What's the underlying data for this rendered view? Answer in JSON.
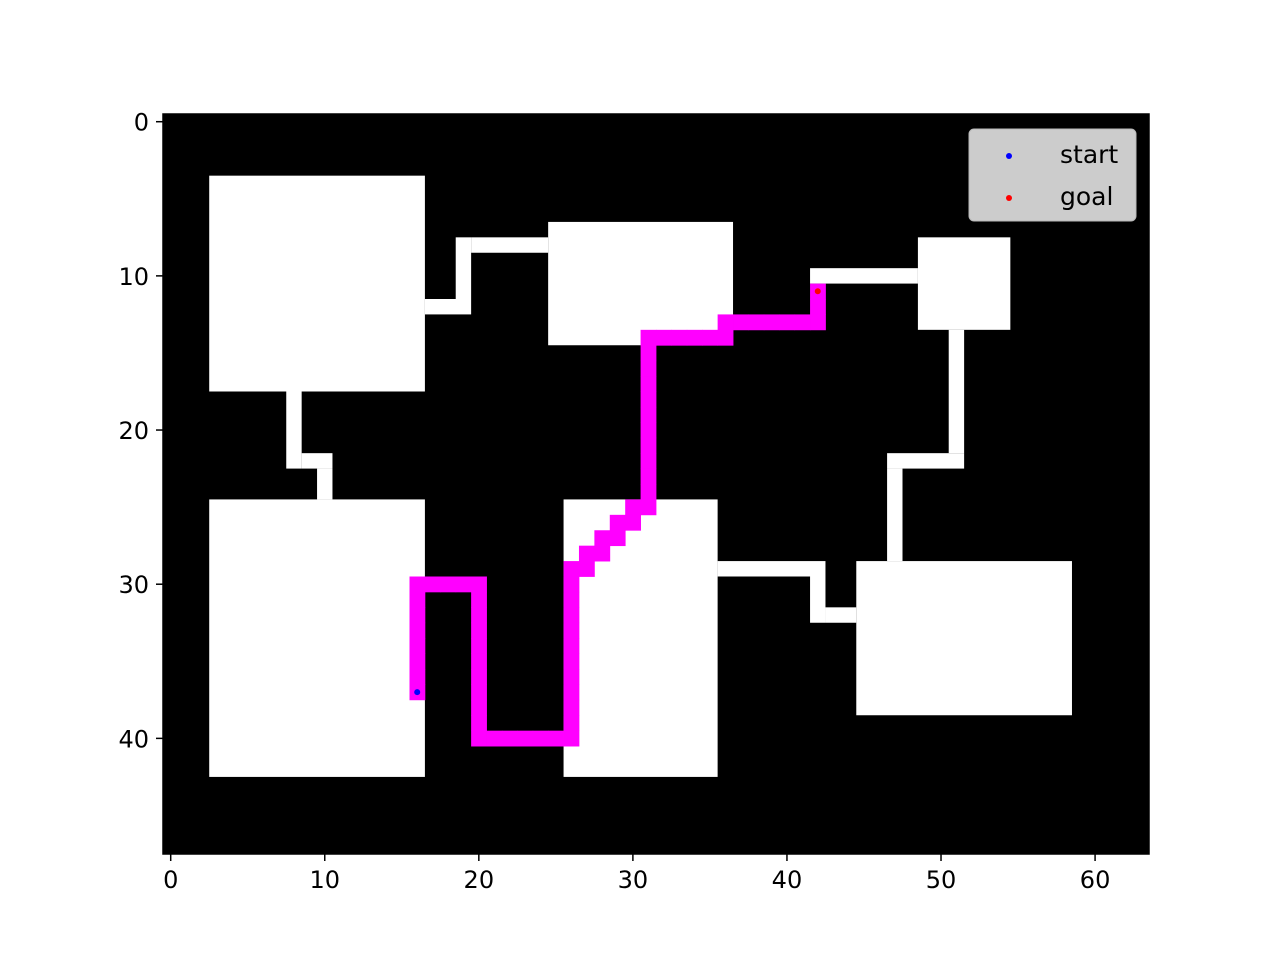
{
  "chart_data": {
    "type": "heatmap",
    "title": "",
    "xlabel": "",
    "ylabel": "",
    "xlim": [
      -0.5,
      63.5
    ],
    "ylim": [
      47.5,
      -0.5
    ],
    "x_ticks": [
      0,
      10,
      20,
      30,
      40,
      50,
      60
    ],
    "y_ticks": [
      0,
      10,
      20,
      30,
      40
    ],
    "grid": false,
    "colors": {
      "background": "#000000",
      "free": "#ffffff",
      "path": "#ff00ff",
      "start": "#0000ff",
      "goal": "#ff0000"
    },
    "free_cells": [
      {
        "c0": 3,
        "c1": 16,
        "r0": 4,
        "r1": 17
      },
      {
        "c0": 3,
        "c1": 16,
        "r0": 25,
        "r1": 42
      },
      {
        "c0": 25,
        "c1": 36,
        "r0": 7,
        "r1": 14
      },
      {
        "c0": 26,
        "c1": 35,
        "r0": 25,
        "r1": 42
      },
      {
        "c0": 49,
        "c1": 54,
        "r0": 8,
        "r1": 13
      },
      {
        "c0": 45,
        "c1": 58,
        "r0": 29,
        "r1": 38
      },
      {
        "c0": 17,
        "c1": 19,
        "r0": 12,
        "r1": 12
      },
      {
        "c0": 19,
        "c1": 19,
        "r0": 8,
        "r1": 11
      },
      {
        "c0": 20,
        "c1": 24,
        "r0": 8,
        "r1": 8
      },
      {
        "c0": 8,
        "c1": 8,
        "r0": 18,
        "r1": 22
      },
      {
        "c0": 9,
        "c1": 10,
        "r0": 22,
        "r1": 22
      },
      {
        "c0": 10,
        "c1": 10,
        "r0": 23,
        "r1": 24
      },
      {
        "c0": 42,
        "c1": 48,
        "r0": 10,
        "r1": 10
      },
      {
        "c0": 51,
        "c1": 51,
        "r0": 14,
        "r1": 21
      },
      {
        "c0": 47,
        "c1": 51,
        "r0": 22,
        "r1": 22
      },
      {
        "c0": 47,
        "c1": 47,
        "r0": 23,
        "r1": 28
      },
      {
        "c0": 36,
        "c1": 42,
        "r0": 29,
        "r1": 29
      },
      {
        "c0": 42,
        "c1": 42,
        "r0": 30,
        "r1": 32
      },
      {
        "c0": 43,
        "c1": 44,
        "r0": 32,
        "r1": 32
      }
    ],
    "path": [
      [
        16,
        37
      ],
      [
        16,
        36
      ],
      [
        16,
        35
      ],
      [
        16,
        34
      ],
      [
        16,
        33
      ],
      [
        16,
        32
      ],
      [
        16,
        31
      ],
      [
        16,
        30
      ],
      [
        17,
        30
      ],
      [
        18,
        30
      ],
      [
        19,
        30
      ],
      [
        20,
        30
      ],
      [
        20,
        31
      ],
      [
        20,
        32
      ],
      [
        20,
        33
      ],
      [
        20,
        34
      ],
      [
        20,
        35
      ],
      [
        20,
        36
      ],
      [
        20,
        37
      ],
      [
        20,
        38
      ],
      [
        20,
        39
      ],
      [
        20,
        40
      ],
      [
        21,
        40
      ],
      [
        22,
        40
      ],
      [
        23,
        40
      ],
      [
        24,
        40
      ],
      [
        25,
        40
      ],
      [
        26,
        40
      ],
      [
        26,
        39
      ],
      [
        26,
        38
      ],
      [
        26,
        37
      ],
      [
        26,
        36
      ],
      [
        26,
        35
      ],
      [
        26,
        34
      ],
      [
        26,
        33
      ],
      [
        26,
        32
      ],
      [
        26,
        31
      ],
      [
        26,
        30
      ],
      [
        26,
        29
      ],
      [
        27,
        29
      ],
      [
        27,
        28
      ],
      [
        28,
        28
      ],
      [
        28,
        27
      ],
      [
        29,
        27
      ],
      [
        29,
        26
      ],
      [
        30,
        26
      ],
      [
        30,
        25
      ],
      [
        31,
        25
      ],
      [
        31,
        24
      ],
      [
        31,
        23
      ],
      [
        31,
        22
      ],
      [
        31,
        21
      ],
      [
        31,
        20
      ],
      [
        31,
        19
      ],
      [
        31,
        18
      ],
      [
        31,
        17
      ],
      [
        31,
        16
      ],
      [
        31,
        15
      ],
      [
        31,
        14
      ],
      [
        32,
        14
      ],
      [
        33,
        14
      ],
      [
        34,
        14
      ],
      [
        35,
        14
      ],
      [
        36,
        14
      ],
      [
        36,
        13
      ],
      [
        37,
        13
      ],
      [
        38,
        13
      ],
      [
        39,
        13
      ],
      [
        40,
        13
      ],
      [
        41,
        13
      ],
      [
        42,
        13
      ],
      [
        42,
        12
      ],
      [
        42,
        11
      ]
    ],
    "start": {
      "x": 16,
      "y": 37
    },
    "goal": {
      "x": 42,
      "y": 11
    },
    "legend": {
      "placement": "top-right",
      "entries": [
        {
          "label": "start",
          "color": "#0000ff"
        },
        {
          "label": "goal",
          "color": "#ff0000"
        }
      ]
    }
  }
}
